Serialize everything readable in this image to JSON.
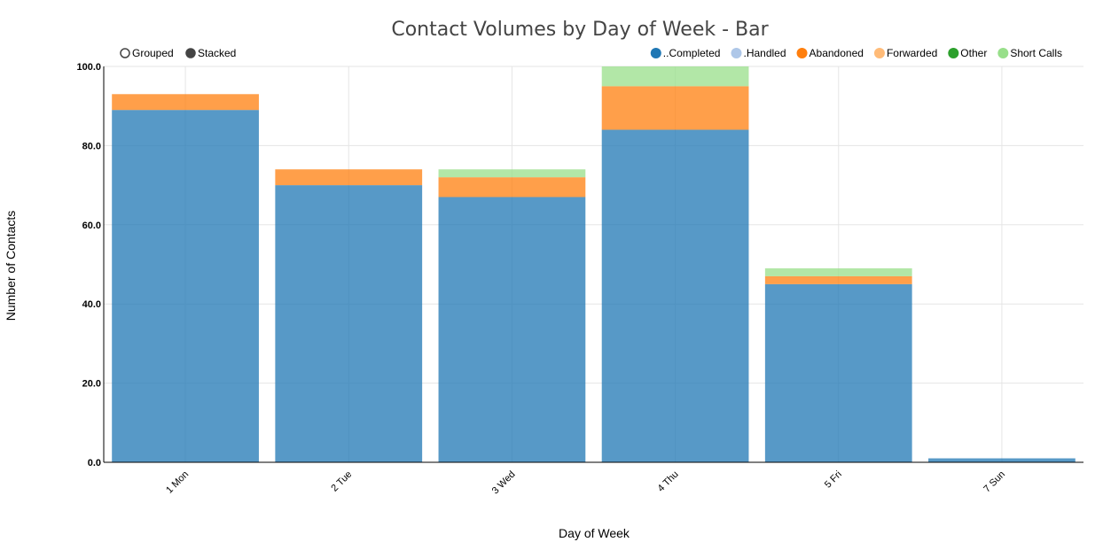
{
  "chart_data": {
    "type": "bar",
    "stacked": true,
    "title": "Contact Volumes by Day of Week - Bar",
    "xlabel": "Day of Week",
    "ylabel": "Number of Contacts",
    "ylim": [
      0,
      100
    ],
    "yticks": [
      "0.0",
      "20.0",
      "40.0",
      "60.0",
      "80.0",
      "100.0"
    ],
    "grid": true,
    "categories": [
      "1 Mon",
      "2 Tue",
      "3 Wed",
      "4 Thu",
      "5 Fri",
      "7 Sun"
    ],
    "series": [
      {
        "name": "..Completed",
        "color": "#1f77b4",
        "values": [
          89,
          70,
          67,
          84,
          45,
          1
        ]
      },
      {
        "name": ".Handled",
        "color": "#aec7e8",
        "values": [
          0,
          0,
          0,
          0,
          0,
          0
        ]
      },
      {
        "name": "Abandoned",
        "color": "#ff7f0e",
        "values": [
          4,
          4,
          5,
          11,
          2,
          0
        ]
      },
      {
        "name": "Forwarded",
        "color": "#ffbb78",
        "values": [
          0,
          0,
          0,
          0,
          0,
          0
        ]
      },
      {
        "name": "Other",
        "color": "#2ca02c",
        "values": [
          0,
          0,
          0,
          0,
          0,
          0
        ]
      },
      {
        "name": "Short Calls",
        "color": "#98df8a",
        "values": [
          0,
          0,
          2,
          5,
          2,
          0
        ]
      }
    ],
    "legend_position": "top-right",
    "mode_toggle": {
      "options": [
        "Grouped",
        "Stacked"
      ],
      "selected": "Stacked"
    }
  }
}
